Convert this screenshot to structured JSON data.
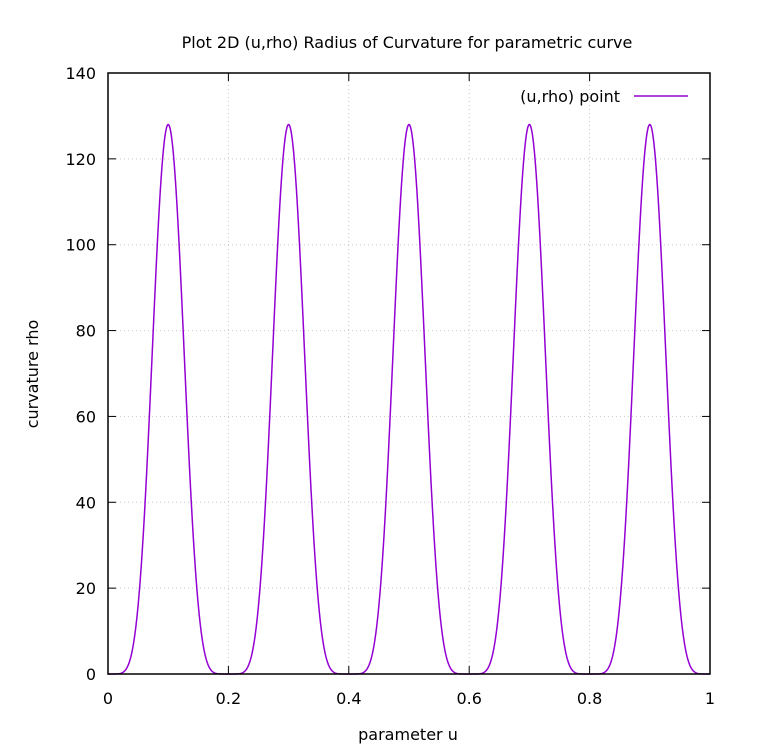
{
  "chart_data": {
    "type": "line",
    "title": "Plot 2D (u,rho) Radius of Curvature for parametric curve",
    "xlabel": "parameter u",
    "ylabel": "curvature rho",
    "xlim": [
      0,
      1
    ],
    "ylim": [
      0,
      140
    ],
    "xticks": [
      "0",
      "0.2",
      "0.4",
      "0.6",
      "0.8",
      "1"
    ],
    "yticks": [
      "0",
      "20",
      "40",
      "60",
      "80",
      "100",
      "120",
      "140"
    ],
    "grid": true,
    "legend_position": "top-right",
    "series": [
      {
        "name": "(u,rho) point",
        "color": "#9400d3",
        "x": [
          0,
          0.02,
          0.04,
          0.06,
          0.08,
          0.1,
          0.12,
          0.14,
          0.16,
          0.18,
          0.2,
          0.22,
          0.24,
          0.26,
          0.28,
          0.3,
          0.32,
          0.34,
          0.36,
          0.38,
          0.4,
          0.42,
          0.44,
          0.46,
          0.48,
          0.5,
          0.52,
          0.54,
          0.56,
          0.58,
          0.6,
          0.62,
          0.64,
          0.66,
          0.68,
          0.7,
          0.72,
          0.74,
          0.76,
          0.78,
          0.8,
          0.82,
          0.84,
          0.86,
          0.88,
          0.9,
          0.92,
          0.94,
          0.96,
          0.98,
          1.0
        ],
        "y": [
          0,
          1.4,
          18.9,
          61.5,
          110.5,
          128,
          110.5,
          61.5,
          18.9,
          1.4,
          0,
          1.4,
          18.9,
          61.5,
          110.5,
          128,
          110.5,
          61.5,
          18.9,
          1.4,
          0,
          1.4,
          18.9,
          61.5,
          110.5,
          128,
          110.5,
          61.5,
          18.9,
          1.4,
          0,
          1.4,
          18.9,
          61.5,
          110.5,
          128,
          110.5,
          61.5,
          18.9,
          1.4,
          0,
          1.4,
          18.9,
          61.5,
          110.5,
          128,
          110.5,
          61.5,
          18.9,
          1.4,
          0
        ],
        "peaks": [
          {
            "u": 0.1,
            "rho": 128
          },
          {
            "u": 0.3,
            "rho": 128
          },
          {
            "u": 0.5,
            "rho": 128
          },
          {
            "u": 0.7,
            "rho": 128
          },
          {
            "u": 0.9,
            "rho": 128
          }
        ],
        "minima": [
          {
            "u": 0.0,
            "rho": 0
          },
          {
            "u": 0.2,
            "rho": 0
          },
          {
            "u": 0.4,
            "rho": 0
          },
          {
            "u": 0.6,
            "rho": 0
          },
          {
            "u": 0.8,
            "rho": 0
          },
          {
            "u": 1.0,
            "rho": 0
          }
        ]
      }
    ]
  }
}
